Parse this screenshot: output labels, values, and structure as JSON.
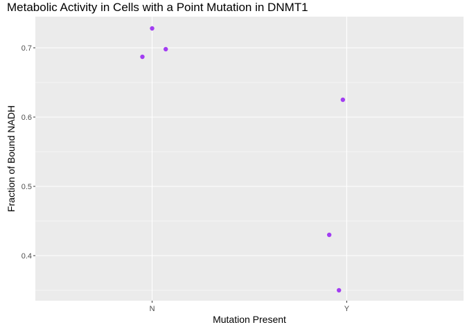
{
  "chart_data": {
    "type": "scatter",
    "title": "Metabolic Activity in Cells with a Point Mutation in DNMT1",
    "xlabel": "Mutation Present",
    "ylabel": "Fraction of Bound NADH",
    "x_categories": [
      "N",
      "Y"
    ],
    "ylim": [
      0.335,
      0.745
    ],
    "y_ticks": [
      0.4,
      0.5,
      0.6,
      0.7
    ],
    "y_tick_labels": [
      "0.4",
      "0.5",
      "0.6",
      "0.7"
    ],
    "grid": true,
    "points": [
      {
        "x": "N",
        "jitter": -0.05,
        "y": 0.687
      },
      {
        "x": "N",
        "jitter": 0.0,
        "y": 0.728
      },
      {
        "x": "N",
        "jitter": 0.07,
        "y": 0.698
      },
      {
        "x": "Y",
        "jitter": -0.02,
        "y": 0.625
      },
      {
        "x": "Y",
        "jitter": -0.09,
        "y": 0.43
      },
      {
        "x": "Y",
        "jitter": -0.04,
        "y": 0.35
      }
    ],
    "colors": {
      "point": "#a23df2",
      "panel_background": "#ebebeb",
      "grid": "#ffffff"
    }
  }
}
